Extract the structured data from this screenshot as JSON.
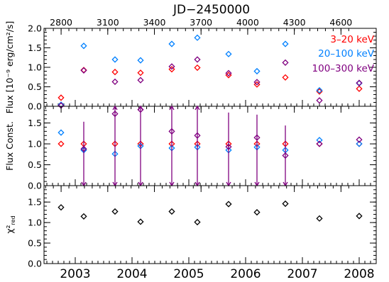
{
  "chart_data": {
    "type": "scatter",
    "top_axis": {
      "title": "JD−2450000",
      "ticks": [
        2800,
        3100,
        3400,
        3700,
        4000,
        4300,
        4600
      ]
    },
    "bottom_axis": {
      "range": [
        2002.45,
        2008.3
      ],
      "ticks": [
        {
          "label": "2003",
          "value": 2003.0
        },
        {
          "label": "2004",
          "value": 2004.0
        },
        {
          "label": "2005",
          "value": 2005.0
        },
        {
          "label": "2006",
          "value": 2006.0
        },
        {
          "label": "2007",
          "value": 2007.0
        },
        {
          "label": "2008",
          "value": 2008.0
        }
      ]
    },
    "jd_to_year": {
      "jd0": 2690,
      "year0": 2002.45,
      "days_per_year": 365.25
    },
    "colors": {
      "band_3_20": "#ff0000",
      "band_20_100": "#0080ff",
      "band_100_300": "#800080",
      "chi2": "#000000"
    },
    "panels": [
      {
        "id": "flux",
        "ylabel": "Flux [10⁻⁹ erg/cm²/s]",
        "ylim": [
          0.0,
          2.0
        ],
        "yticks": [
          "0.0",
          "0.5",
          "1.0",
          "1.5",
          "2.0"
        ],
        "legend": [
          "3–20 keV",
          "20–100 keV",
          "100–300 keV"
        ],
        "series": [
          {
            "name": "3–20 keV",
            "color": "#ff0000",
            "x": [
              2002.75,
              2003.15,
              2003.7,
              2004.15,
              2004.7,
              2005.15,
              2005.7,
              2006.2,
              2006.7,
              2007.3,
              2008.0
            ],
            "y": [
              0.22,
              0.93,
              0.88,
              0.86,
              0.95,
              0.99,
              0.8,
              0.56,
              0.74,
              0.38,
              0.45
            ]
          },
          {
            "name": "20–100 keV",
            "color": "#0080ff",
            "x": [
              2002.75,
              2003.15,
              2003.7,
              2004.15,
              2004.7,
              2005.15,
              2005.7,
              2006.2,
              2006.7,
              2007.3,
              2008.0
            ],
            "y": [
              0.04,
              1.55,
              1.2,
              1.18,
              1.6,
              1.76,
              1.34,
              0.9,
              1.6,
              0.41,
              0.59
            ]
          },
          {
            "name": "100–300 keV",
            "color": "#800080",
            "x": [
              2002.75,
              2003.15,
              2003.7,
              2004.15,
              2004.7,
              2005.15,
              2005.7,
              2006.2,
              2006.7,
              2007.3,
              2008.0
            ],
            "y": [
              0.02,
              0.92,
              0.63,
              0.67,
              1.02,
              1.2,
              0.85,
              0.62,
              1.12,
              0.15,
              0.6
            ]
          }
        ]
      },
      {
        "id": "fluxconst",
        "ylabel": "Flux Const.",
        "ylim": [
          0.0,
          1.9
        ],
        "yticks": [
          "0.0",
          "0.5",
          "1.0",
          "1.5"
        ],
        "series": [
          {
            "name": "3–20 keV",
            "color": "#ff0000",
            "x": [
              2002.75,
              2003.15,
              2003.7,
              2004.15,
              2004.7,
              2005.15,
              2005.7,
              2006.2,
              2006.7,
              2007.3,
              2008.0
            ],
            "y": [
              1.0,
              1.0,
              1.0,
              1.0,
              1.0,
              1.0,
              1.0,
              1.0,
              1.0,
              1.0,
              1.0
            ]
          },
          {
            "name": "20–100 keV",
            "color": "#0080ff",
            "x": [
              2002.75,
              2003.15,
              2003.7,
              2004.15,
              2004.7,
              2005.15,
              2005.7,
              2006.2,
              2006.7,
              2007.3,
              2008.0
            ],
            "y": [
              1.27,
              0.85,
              0.76,
              0.95,
              0.9,
              0.92,
              0.85,
              0.92,
              0.85,
              1.09,
              1.0
            ]
          },
          {
            "name": "100–300 keV",
            "color": "#800080",
            "x": [
              2003.15,
              2003.7,
              2004.15,
              2004.7,
              2005.15,
              2005.7,
              2006.2,
              2006.7,
              2007.3,
              2008.0
            ],
            "y": [
              0.88,
              1.72,
              1.82,
              1.3,
              1.2,
              0.93,
              1.15,
              0.72,
              1.0,
              1.1
            ],
            "err_low": [
              0.88,
              1.72,
              1.82,
              1.3,
              1.2,
              0.93,
              1.15,
              0.72,
              null,
              null
            ],
            "err_high": [
              0.65,
              0.18,
              0.08,
              0.6,
              0.7,
              0.82,
              0.55,
              0.72,
              null,
              null
            ]
          }
        ]
      },
      {
        "id": "chi2",
        "ylabel": "χ²",
        "ylabel_sub": "red",
        "ylim": [
          0.0,
          1.9
        ],
        "yticks": [
          "0.0",
          "0.5",
          "1.0",
          "1.5"
        ],
        "series": [
          {
            "name": "chi2",
            "color": "#000000",
            "x": [
              2002.75,
              2003.15,
              2003.7,
              2004.15,
              2004.7,
              2005.15,
              2005.7,
              2006.2,
              2006.7,
              2007.3,
              2008.0
            ],
            "y": [
              1.37,
              1.15,
              1.27,
              1.02,
              1.27,
              1.01,
              1.45,
              1.25,
              1.46,
              1.1,
              1.16
            ]
          }
        ]
      }
    ]
  }
}
